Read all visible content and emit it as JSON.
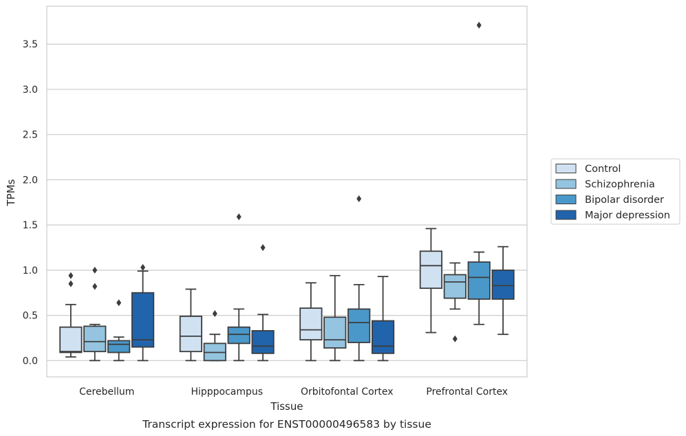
{
  "caption": "Transcript expression for ENST00000496583 by tissue",
  "chart_data": {
    "type": "box",
    "xlabel": "Tissue",
    "ylabel": "TPMs",
    "ylim": [
      -0.18,
      3.92
    ],
    "yticks": [
      0.0,
      0.5,
      1.0,
      1.5,
      2.0,
      2.5,
      3.0,
      3.5
    ],
    "ytick_labels": [
      "0.0",
      "0.5",
      "1.0",
      "1.5",
      "2.0",
      "2.5",
      "3.0",
      "3.5"
    ],
    "grid": "horizontal",
    "legend_position": "right",
    "categories": [
      "Cerebellum",
      "Hipppocampus",
      "Orbitofontal Cortex",
      "Prefrontal Cortex"
    ],
    "series": [
      {
        "name": "Control",
        "color": "#d0e1f2",
        "boxes": [
          {
            "whislo": 0.04,
            "q1": 0.09,
            "med": 0.1,
            "q3": 0.37,
            "whishi": 0.62,
            "fliers": [
              0.85,
              0.94
            ]
          },
          {
            "whislo": 0.0,
            "q1": 0.1,
            "med": 0.27,
            "q3": 0.49,
            "whishi": 0.79,
            "fliers": []
          },
          {
            "whislo": 0.0,
            "q1": 0.23,
            "med": 0.34,
            "q3": 0.58,
            "whishi": 0.86,
            "fliers": []
          },
          {
            "whislo": 0.31,
            "q1": 0.8,
            "med": 1.05,
            "q3": 1.21,
            "whishi": 1.46,
            "fliers": []
          }
        ]
      },
      {
        "name": "Schizophrenia",
        "color": "#94c4df",
        "boxes": [
          {
            "whislo": 0.0,
            "q1": 0.1,
            "med": 0.21,
            "q3": 0.38,
            "whishi": 0.4,
            "fliers": [
              0.82,
              1.0
            ]
          },
          {
            "whislo": 0.0,
            "q1": 0.0,
            "med": 0.09,
            "q3": 0.19,
            "whishi": 0.29,
            "fliers": [
              0.52
            ]
          },
          {
            "whislo": 0.0,
            "q1": 0.14,
            "med": 0.23,
            "q3": 0.48,
            "whishi": 0.94,
            "fliers": []
          },
          {
            "whislo": 0.57,
            "q1": 0.69,
            "med": 0.87,
            "q3": 0.95,
            "whishi": 1.08,
            "fliers": [
              0.24
            ]
          }
        ]
      },
      {
        "name": "Bipolar disorder",
        "color": "#4a98c9",
        "boxes": [
          {
            "whislo": 0.0,
            "q1": 0.09,
            "med": 0.18,
            "q3": 0.22,
            "whishi": 0.26,
            "fliers": [
              0.64
            ]
          },
          {
            "whislo": 0.0,
            "q1": 0.19,
            "med": 0.29,
            "q3": 0.37,
            "whishi": 0.57,
            "fliers": [
              1.59
            ]
          },
          {
            "whislo": 0.0,
            "q1": 0.2,
            "med": 0.42,
            "q3": 0.57,
            "whishi": 0.84,
            "fliers": [
              1.79
            ]
          },
          {
            "whislo": 0.4,
            "q1": 0.68,
            "med": 0.92,
            "q3": 1.09,
            "whishi": 1.2,
            "fliers": [
              3.71
            ]
          }
        ]
      },
      {
        "name": "Major depression",
        "color": "#2164ab",
        "boxes": [
          {
            "whislo": 0.0,
            "q1": 0.15,
            "med": 0.23,
            "q3": 0.75,
            "whishi": 0.99,
            "fliers": [
              1.03
            ]
          },
          {
            "whislo": 0.0,
            "q1": 0.08,
            "med": 0.16,
            "q3": 0.33,
            "whishi": 0.51,
            "fliers": [
              1.25
            ]
          },
          {
            "whislo": 0.0,
            "q1": 0.08,
            "med": 0.16,
            "q3": 0.44,
            "whishi": 0.93,
            "fliers": []
          },
          {
            "whislo": 0.29,
            "q1": 0.68,
            "med": 0.83,
            "q3": 1.0,
            "whishi": 1.26,
            "fliers": []
          }
        ]
      }
    ]
  }
}
